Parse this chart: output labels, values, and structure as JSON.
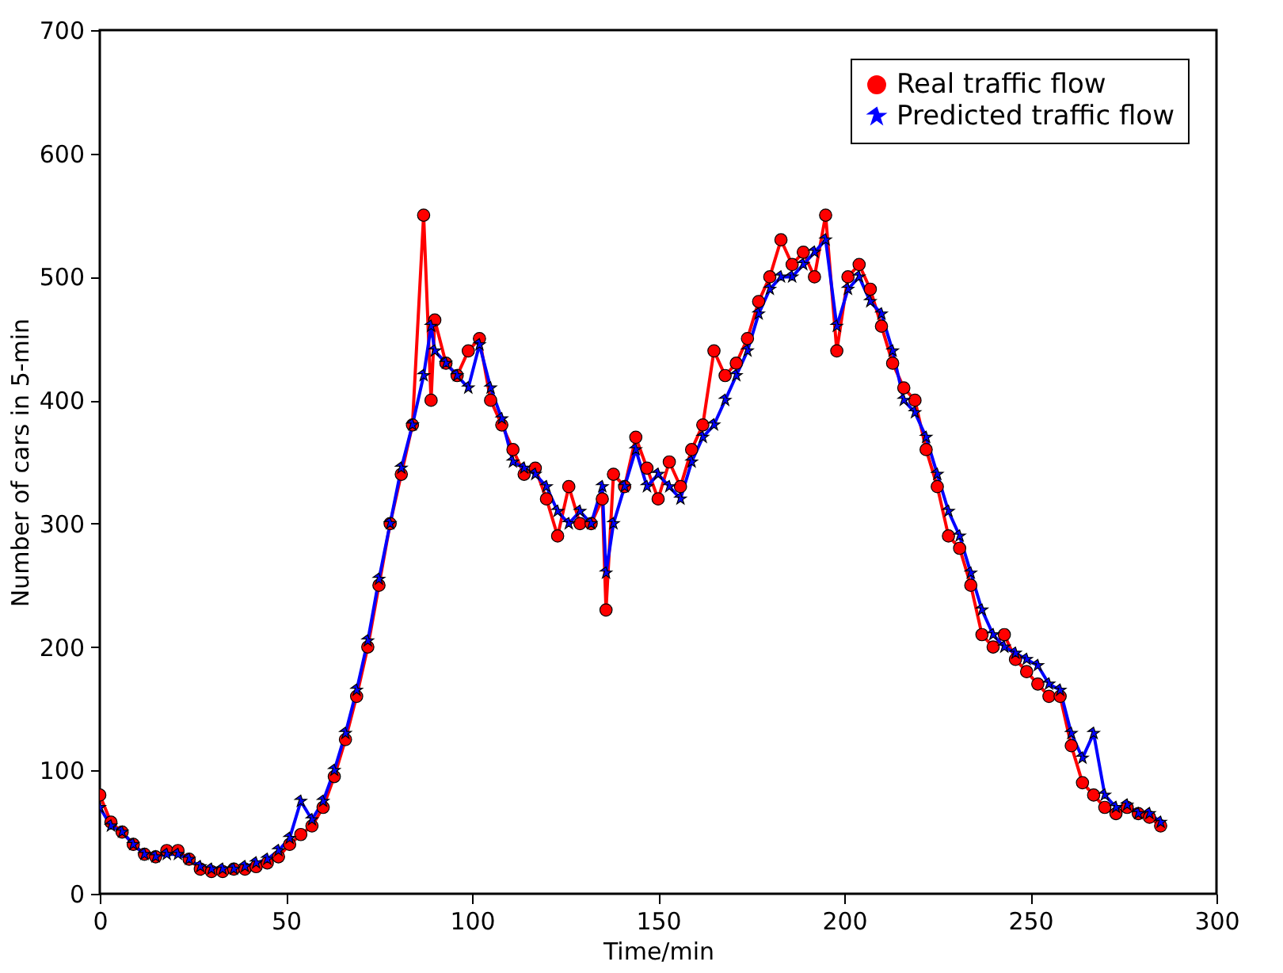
{
  "chart_data": {
    "type": "line",
    "xlabel": "Time/min",
    "ylabel": "Number of cars in 5-min",
    "xlim": [
      0,
      300
    ],
    "xticks": [
      0,
      50,
      100,
      150,
      200,
      250,
      300
    ],
    "ylim": [
      0,
      700
    ],
    "yticks": [
      0,
      100,
      200,
      300,
      400,
      500,
      600,
      700
    ],
    "grid": false,
    "legend": "top right",
    "line_style": "solid",
    "x": [
      0,
      3,
      6,
      9,
      12,
      15,
      18,
      21,
      24,
      27,
      30,
      33,
      36,
      39,
      42,
      45,
      48,
      51,
      54,
      57,
      60,
      63,
      66,
      69,
      72,
      75,
      78,
      81,
      84,
      87,
      89,
      90,
      93,
      96,
      99,
      102,
      105,
      108,
      111,
      114,
      117,
      120,
      123,
      126,
      129,
      132,
      135,
      136,
      138,
      141,
      144,
      147,
      150,
      153,
      156,
      159,
      162,
      165,
      168,
      171,
      174,
      177,
      180,
      183,
      186,
      189,
      192,
      195,
      198,
      201,
      204,
      207,
      210,
      213,
      216,
      219,
      222,
      225,
      228,
      231,
      234,
      237,
      240,
      243,
      246,
      249,
      252,
      255,
      258,
      261,
      264,
      267,
      270,
      273,
      276,
      279,
      282,
      285
    ],
    "series": [
      {
        "name": "Real traffic flow",
        "color": "#ff0000",
        "marker": "circle",
        "values": [
          80,
          58,
          50,
          40,
          32,
          30,
          35,
          35,
          28,
          20,
          18,
          18,
          20,
          20,
          22,
          25,
          30,
          40,
          48,
          55,
          70,
          95,
          125,
          160,
          200,
          250,
          300,
          340,
          380,
          550,
          400,
          465,
          430,
          420,
          440,
          450,
          400,
          380,
          360,
          340,
          345,
          320,
          290,
          330,
          300,
          300,
          320,
          230,
          340,
          330,
          370,
          345,
          320,
          350,
          330,
          360,
          380,
          440,
          420,
          430,
          450,
          480,
          500,
          530,
          510,
          520,
          500,
          550,
          440,
          500,
          510,
          490,
          460,
          430,
          410,
          400,
          360,
          330,
          290,
          280,
          250,
          210,
          200,
          210,
          190,
          180,
          170,
          160,
          160,
          120,
          90,
          80,
          70,
          65,
          70,
          65,
          62,
          55
        ]
      },
      {
        "name": "Predicted traffic flow",
        "color": "#0000ff",
        "marker": "star",
        "values": [
          70,
          55,
          50,
          40,
          32,
          30,
          32,
          32,
          28,
          22,
          20,
          20,
          20,
          22,
          25,
          28,
          35,
          45,
          75,
          60,
          75,
          100,
          130,
          165,
          205,
          255,
          300,
          345,
          380,
          420,
          460,
          440,
          430,
          420,
          410,
          445,
          410,
          385,
          350,
          345,
          340,
          330,
          310,
          300,
          310,
          300,
          330,
          260,
          300,
          330,
          360,
          330,
          340,
          330,
          320,
          350,
          370,
          380,
          400,
          420,
          440,
          470,
          490,
          500,
          500,
          510,
          520,
          530,
          460,
          490,
          500,
          480,
          470,
          440,
          400,
          390,
          370,
          340,
          310,
          290,
          260,
          230,
          210,
          200,
          195,
          190,
          185,
          170,
          165,
          130,
          110,
          130,
          80,
          70,
          72,
          65,
          65,
          58
        ]
      }
    ]
  }
}
